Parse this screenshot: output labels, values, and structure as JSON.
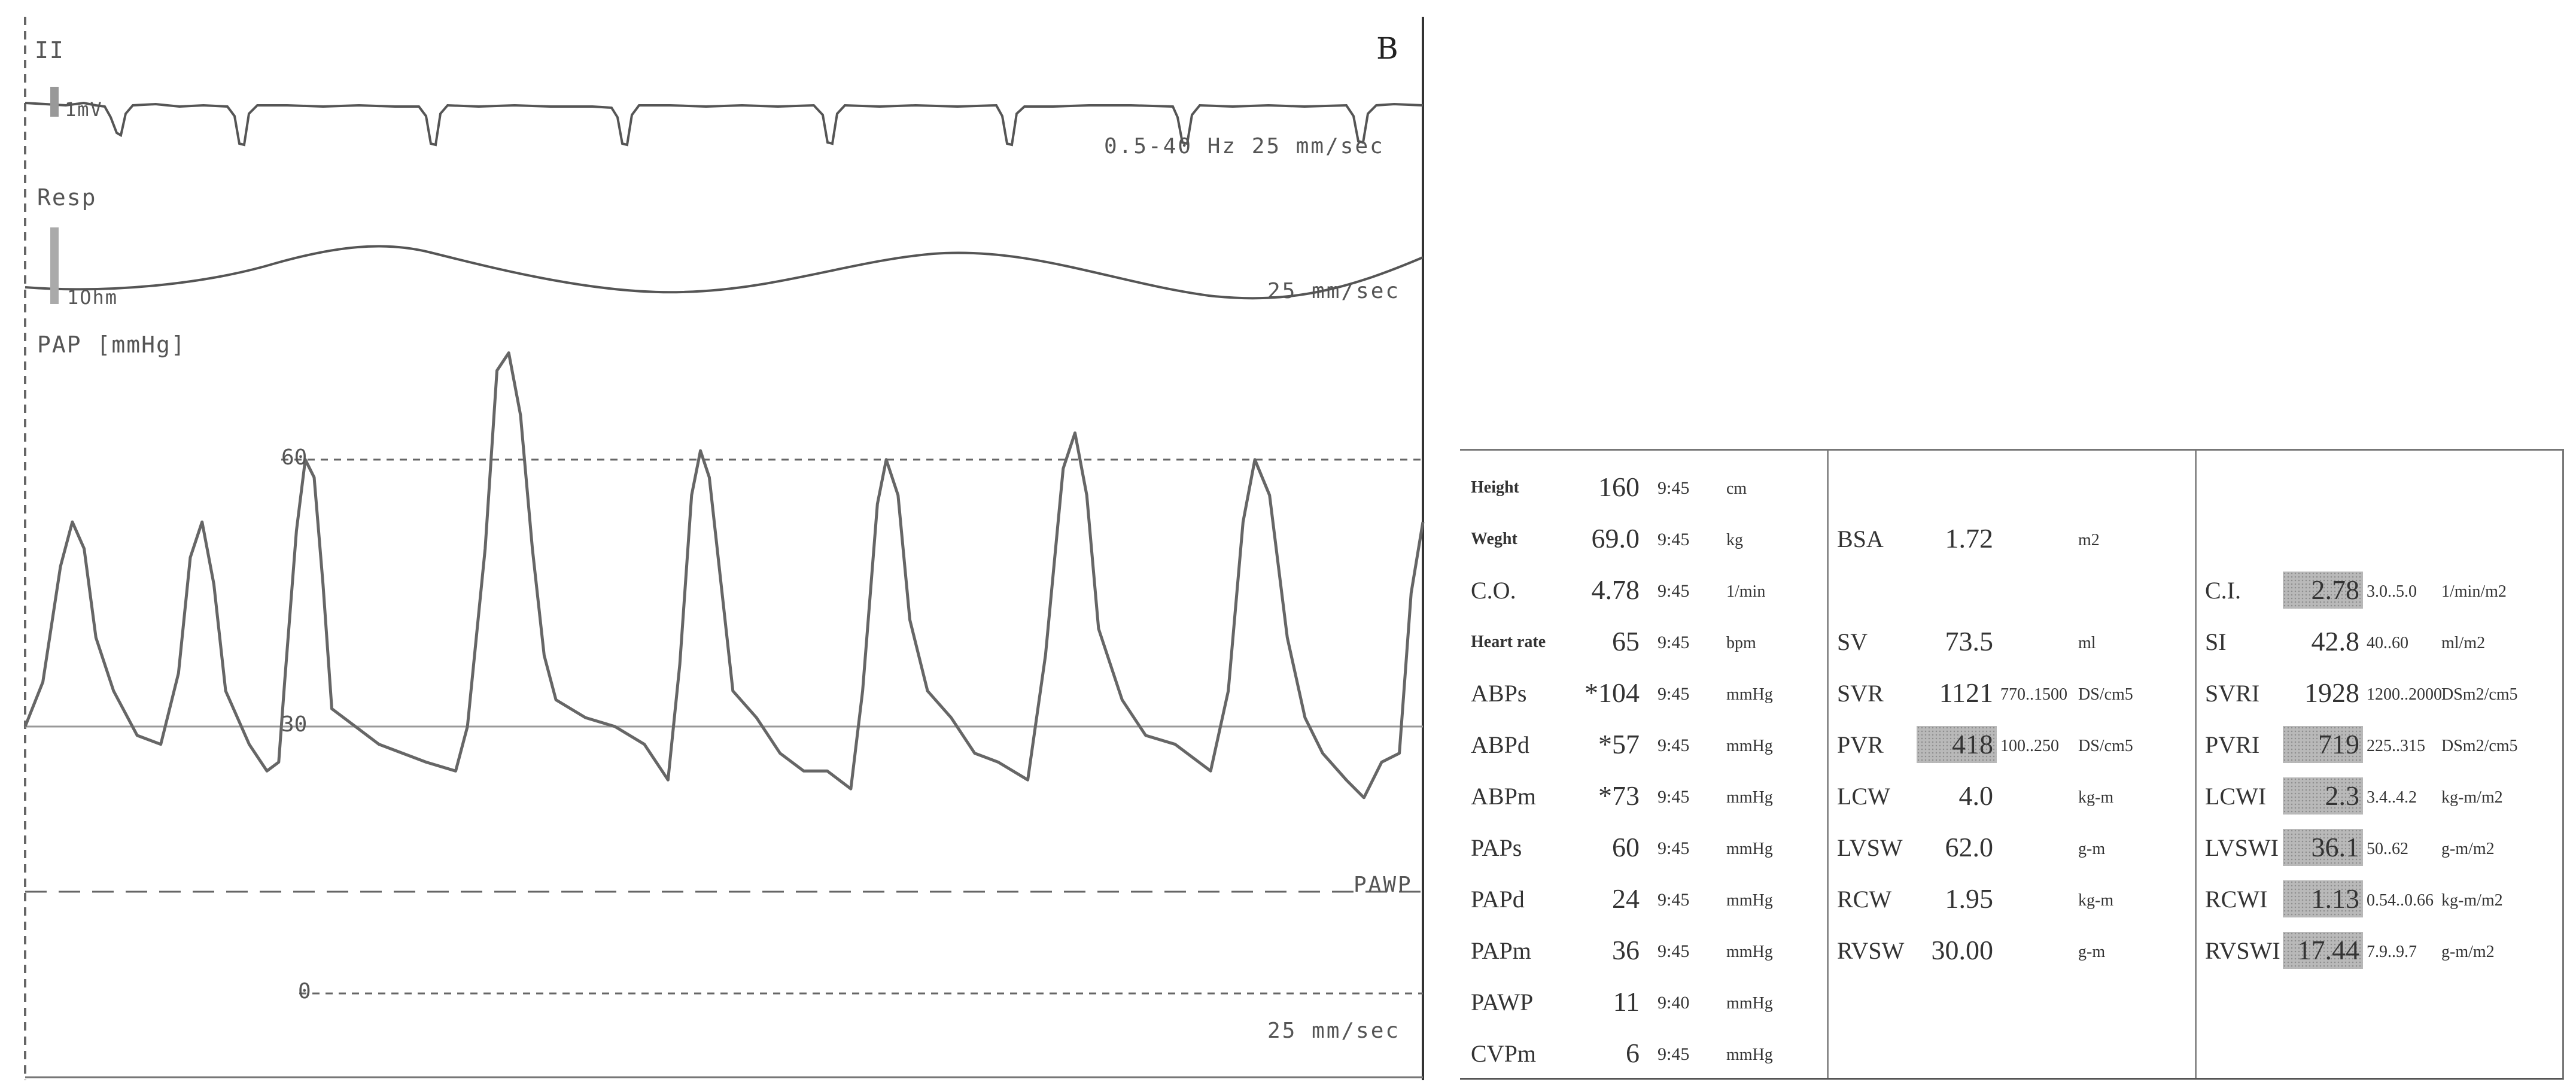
{
  "panel_letter": "B",
  "traces": {
    "ecg": {
      "lead": "II",
      "scale": "1mV",
      "filter": "0.5-40 Hz 25 mm/sec"
    },
    "resp": {
      "label": "Resp",
      "scale": "1Ohm",
      "speed": "25 mm/sec"
    },
    "pap": {
      "label": "PAP [mmHg]",
      "ticks": [
        "60",
        "30",
        "0"
      ],
      "pawp_marker": "PAWP",
      "speed": "25 mm/sec"
    }
  },
  "chart_data": {
    "type": "line",
    "title": "PAP [mmHg]",
    "ylabel": "mmHg",
    "ylim": [
      0,
      75
    ],
    "reference_lines": [
      60,
      30,
      0
    ],
    "series": [
      {
        "name": "PAP",
        "points": [
          [
            0,
            30
          ],
          [
            0.3,
            35
          ],
          [
            0.6,
            48
          ],
          [
            0.8,
            53
          ],
          [
            1.0,
            50
          ],
          [
            1.2,
            40
          ],
          [
            1.5,
            34
          ],
          [
            1.9,
            29
          ],
          [
            2.3,
            28
          ],
          [
            2.6,
            36
          ],
          [
            2.8,
            49
          ],
          [
            3.0,
            53
          ],
          [
            3.2,
            46
          ],
          [
            3.4,
            34
          ],
          [
            3.8,
            28
          ],
          [
            4.1,
            25
          ],
          [
            4.3,
            26
          ],
          [
            4.4,
            35
          ],
          [
            4.6,
            52
          ],
          [
            4.75,
            60
          ],
          [
            4.9,
            58
          ],
          [
            5.05,
            46
          ],
          [
            5.2,
            32
          ],
          [
            5.6,
            30
          ],
          [
            6.0,
            28
          ],
          [
            6.4,
            27
          ],
          [
            6.8,
            26
          ],
          [
            7.3,
            25
          ],
          [
            7.5,
            30
          ],
          [
            7.8,
            50
          ],
          [
            8.0,
            70
          ],
          [
            8.2,
            72
          ],
          [
            8.4,
            65
          ],
          [
            8.6,
            50
          ],
          [
            8.8,
            38
          ],
          [
            9.0,
            33
          ],
          [
            9.5,
            31
          ],
          [
            10.0,
            30
          ],
          [
            10.5,
            28
          ],
          [
            10.8,
            25
          ],
          [
            10.9,
            24
          ],
          [
            11.1,
            37
          ],
          [
            11.3,
            56
          ],
          [
            11.45,
            61
          ],
          [
            11.6,
            58
          ],
          [
            11.8,
            46
          ],
          [
            12.0,
            34
          ],
          [
            12.4,
            31
          ],
          [
            12.8,
            27
          ],
          [
            13.2,
            25
          ],
          [
            13.6,
            25
          ],
          [
            14.0,
            23
          ],
          [
            14.2,
            34
          ],
          [
            14.45,
            55
          ],
          [
            14.6,
            60
          ],
          [
            14.8,
            56
          ],
          [
            15.0,
            42
          ],
          [
            15.3,
            34
          ],
          [
            15.7,
            31
          ],
          [
            16.1,
            27
          ],
          [
            16.5,
            26
          ],
          [
            17.0,
            24
          ],
          [
            17.3,
            38
          ],
          [
            17.6,
            59
          ],
          [
            17.8,
            63
          ],
          [
            18.0,
            56
          ],
          [
            18.2,
            41
          ],
          [
            18.6,
            33
          ],
          [
            19.0,
            29
          ],
          [
            19.5,
            28
          ],
          [
            20.1,
            25
          ],
          [
            20.4,
            34
          ],
          [
            20.65,
            53
          ],
          [
            20.85,
            60
          ],
          [
            21.1,
            56
          ],
          [
            21.4,
            40
          ],
          [
            21.7,
            31
          ],
          [
            22.0,
            27
          ],
          [
            22.4,
            24
          ],
          [
            22.7,
            22
          ],
          [
            23.0,
            26
          ],
          [
            23.3,
            27
          ],
          [
            23.5,
            45
          ],
          [
            23.7,
            53
          ]
        ]
      }
    ]
  },
  "table": {
    "col1": [
      {
        "label": "Height",
        "value": "160",
        "time": "9:45",
        "unit": "cm",
        "small": true
      },
      {
        "label": "Weght",
        "value": "69.0",
        "time": "9:45",
        "unit": "kg",
        "small": true
      },
      {
        "label": "C.O.",
        "value": "4.78",
        "time": "9:45",
        "unit": "1/min",
        "small": false
      },
      {
        "label": "Heart rate",
        "value": "65",
        "time": "9:45",
        "unit": "bpm",
        "small": true
      },
      {
        "label": "ABPs",
        "value": "*104",
        "time": "9:45",
        "unit": "mmHg",
        "small": false
      },
      {
        "label": "ABPd",
        "value": "*57",
        "time": "9:45",
        "unit": "mmHg",
        "small": false
      },
      {
        "label": "ABPm",
        "value": "*73",
        "time": "9:45",
        "unit": "mmHg",
        "small": false
      },
      {
        "label": "PAPs",
        "value": "60",
        "time": "9:45",
        "unit": "mmHg",
        "small": false
      },
      {
        "label": "PAPd",
        "value": "24",
        "time": "9:45",
        "unit": "mmHg",
        "small": false
      },
      {
        "label": "PAPm",
        "value": "36",
        "time": "9:45",
        "unit": "mmHg",
        "small": false
      },
      {
        "label": "PAWP",
        "value": "11",
        "time": "9:40",
        "unit": "mmHg",
        "small": false
      },
      {
        "label": "CVPm",
        "value": "6",
        "time": "9:45",
        "unit": "mmHg",
        "small": false
      }
    ],
    "col2": [
      {
        "label": "BSA",
        "value": "1.72",
        "range": "",
        "unit": "m2",
        "row": 1,
        "shaded": false
      },
      {
        "label": "SV",
        "value": "73.5",
        "range": "",
        "unit": "ml",
        "row": 3,
        "shaded": false
      },
      {
        "label": "SVR",
        "value": "1121",
        "range": "770..1500",
        "unit": "DS/cm5",
        "row": 4,
        "shaded": false
      },
      {
        "label": "PVR",
        "value": "418",
        "range": "100..250",
        "unit": "DS/cm5",
        "row": 5,
        "shaded": true
      },
      {
        "label": "LCW",
        "value": "4.0",
        "range": "",
        "unit": "kg-m",
        "row": 6,
        "shaded": false
      },
      {
        "label": "LVSW",
        "value": "62.0",
        "range": "",
        "unit": "g-m",
        "row": 7,
        "shaded": false
      },
      {
        "label": "RCW",
        "value": "1.95",
        "range": "",
        "unit": "kg-m",
        "row": 8,
        "shaded": false
      },
      {
        "label": "RVSW",
        "value": "30.00",
        "range": "",
        "unit": "g-m",
        "row": 9,
        "shaded": false
      }
    ],
    "col3": [
      {
        "label": "C.I.",
        "value": "2.78",
        "range": "3.0..5.0",
        "unit": "1/min/m2",
        "row": 2,
        "shaded": true
      },
      {
        "label": "SI",
        "value": "42.8",
        "range": "40..60",
        "unit": "ml/m2",
        "row": 3,
        "shaded": false
      },
      {
        "label": "SVRI",
        "value": "1928",
        "range": "1200..2000",
        "unit": "DSm2/cm5",
        "row": 4,
        "shaded": false
      },
      {
        "label": "PVRI",
        "value": "719",
        "range": "225..315",
        "unit": "DSm2/cm5",
        "row": 5,
        "shaded": true
      },
      {
        "label": "LCWI",
        "value": "2.3",
        "range": "3.4..4.2",
        "unit": "kg-m/m2",
        "row": 6,
        "shaded": true
      },
      {
        "label": "LVSWI",
        "value": "36.1",
        "range": "50..62",
        "unit": "g-m/m2",
        "row": 7,
        "shaded": true
      },
      {
        "label": "RCWI",
        "value": "1.13",
        "range": "0.54..0.66",
        "unit": "kg-m/m2",
        "row": 8,
        "shaded": true
      },
      {
        "label": "RVSWI",
        "value": "17.44",
        "range": "7.9..9.7",
        "unit": "g-m/m2",
        "row": 9,
        "shaded": true
      }
    ]
  }
}
